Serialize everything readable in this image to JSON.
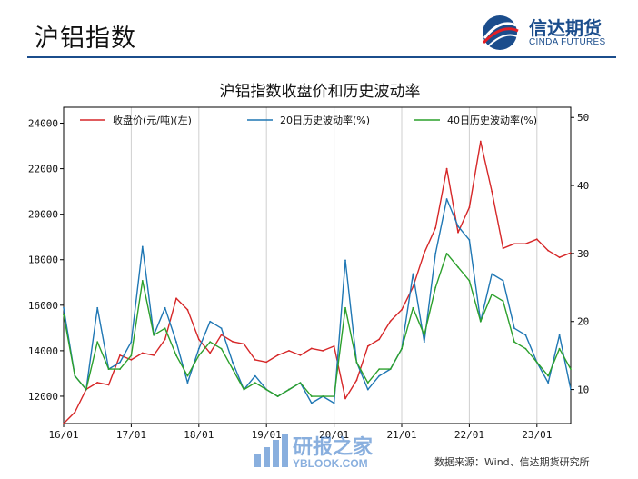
{
  "header": {
    "title": "沪铝指数",
    "logo_cn": "信达期货",
    "logo_en": "CINDA FUTURES"
  },
  "watermark": {
    "cn": "研报之家",
    "en": "YBLOOK.COM"
  },
  "source": "数据来源：Wind、信达期货研究所",
  "colors": {
    "price": "#d62728",
    "vol20": "#1f77b4",
    "vol40": "#2ca02c",
    "brand": "#1b4d8c"
  },
  "chart_data": {
    "type": "line",
    "title": "沪铝指数收盘价和历史波动率",
    "x_tick_labels": [
      "16/01",
      "17/01",
      "18/01",
      "19/01",
      "20/01",
      "21/01",
      "22/01",
      "23/01"
    ],
    "xlim": [
      "2016-01",
      "2023-07"
    ],
    "y_left": {
      "ylim": [
        10800,
        24700
      ],
      "ticks": [
        12000,
        14000,
        16000,
        18000,
        20000,
        22000,
        24000
      ]
    },
    "y_right": {
      "ylim": [
        5,
        51.5
      ],
      "ticks": [
        10,
        20,
        30,
        40,
        50
      ]
    },
    "grid": "vertical lines at year ticks",
    "legend_placement": "top",
    "series": [
      {
        "name": "收盘价(元/吨)(左)",
        "axis": "left",
        "x": [
          "2016-01",
          "2016-03",
          "2016-05",
          "2016-07",
          "2016-09",
          "2016-11",
          "2017-01",
          "2017-03",
          "2017-05",
          "2017-07",
          "2017-09",
          "2017-11",
          "2018-01",
          "2018-03",
          "2018-05",
          "2018-07",
          "2018-09",
          "2018-11",
          "2019-01",
          "2019-03",
          "2019-05",
          "2019-07",
          "2019-09",
          "2019-11",
          "2020-01",
          "2020-03",
          "2020-05",
          "2020-07",
          "2020-09",
          "2020-11",
          "2021-01",
          "2021-03",
          "2021-05",
          "2021-07",
          "2021-09",
          "2021-11",
          "2022-01",
          "2022-03",
          "2022-05",
          "2022-07",
          "2022-09",
          "2022-11",
          "2023-01",
          "2023-03",
          "2023-05",
          "2023-07"
        ],
        "values": [
          10800,
          11300,
          12300,
          12600,
          12500,
          13800,
          13600,
          13900,
          13800,
          14500,
          16300,
          15800,
          14500,
          13900,
          14700,
          14400,
          14300,
          13600,
          13500,
          13800,
          14000,
          13800,
          14100,
          14000,
          14200,
          11900,
          12700,
          14200,
          14500,
          15300,
          15800,
          16800,
          18300,
          19400,
          22000,
          19200,
          20300,
          23200,
          21000,
          18500,
          18700,
          18700,
          18900,
          18400,
          18100,
          18300
        ]
      },
      {
        "name": "20日历史波动率(%)",
        "axis": "right",
        "x": [
          "2016-01",
          "2016-03",
          "2016-05",
          "2016-07",
          "2016-09",
          "2016-11",
          "2017-01",
          "2017-03",
          "2017-05",
          "2017-07",
          "2017-09",
          "2017-11",
          "2018-01",
          "2018-03",
          "2018-05",
          "2018-07",
          "2018-09",
          "2018-11",
          "2019-01",
          "2019-03",
          "2019-05",
          "2019-07",
          "2019-09",
          "2019-11",
          "2020-01",
          "2020-03",
          "2020-05",
          "2020-07",
          "2020-09",
          "2020-11",
          "2021-01",
          "2021-03",
          "2021-05",
          "2021-07",
          "2021-09",
          "2021-11",
          "2022-01",
          "2022-03",
          "2022-05",
          "2022-07",
          "2022-09",
          "2022-11",
          "2023-01",
          "2023-03",
          "2023-05",
          "2023-07"
        ],
        "values": [
          22,
          12,
          10,
          22,
          13,
          14,
          17,
          31,
          18,
          22,
          17,
          11,
          16,
          20,
          19,
          14,
          10,
          12,
          10,
          9,
          10,
          11,
          8,
          9,
          8,
          29,
          14,
          10,
          12,
          13,
          16,
          27,
          17,
          30,
          38,
          34,
          32,
          20,
          27,
          26,
          19,
          18,
          14,
          11,
          18,
          10
        ]
      },
      {
        "name": "40日历史波动率(%)",
        "axis": "right",
        "x": [
          "2016-01",
          "2016-03",
          "2016-05",
          "2016-07",
          "2016-09",
          "2016-11",
          "2017-01",
          "2017-03",
          "2017-05",
          "2017-07",
          "2017-09",
          "2017-11",
          "2018-01",
          "2018-03",
          "2018-05",
          "2018-07",
          "2018-09",
          "2018-11",
          "2019-01",
          "2019-03",
          "2019-05",
          "2019-07",
          "2019-09",
          "2019-11",
          "2020-01",
          "2020-03",
          "2020-05",
          "2020-07",
          "2020-09",
          "2020-11",
          "2021-01",
          "2021-03",
          "2021-05",
          "2021-07",
          "2021-09",
          "2021-11",
          "2022-01",
          "2022-03",
          "2022-05",
          "2022-07",
          "2022-09",
          "2022-11",
          "2023-01",
          "2023-03",
          "2023-05",
          "2023-07"
        ],
        "values": [
          21,
          12,
          10,
          17,
          13,
          13,
          15,
          26,
          18,
          19,
          15,
          12,
          15,
          17,
          16,
          13,
          10,
          11,
          10,
          9,
          10,
          11,
          9,
          9,
          9,
          22,
          14,
          11,
          13,
          13,
          16,
          22,
          18,
          25,
          30,
          28,
          26,
          20,
          24,
          23,
          17,
          16,
          14,
          12,
          16,
          13
        ]
      }
    ]
  }
}
